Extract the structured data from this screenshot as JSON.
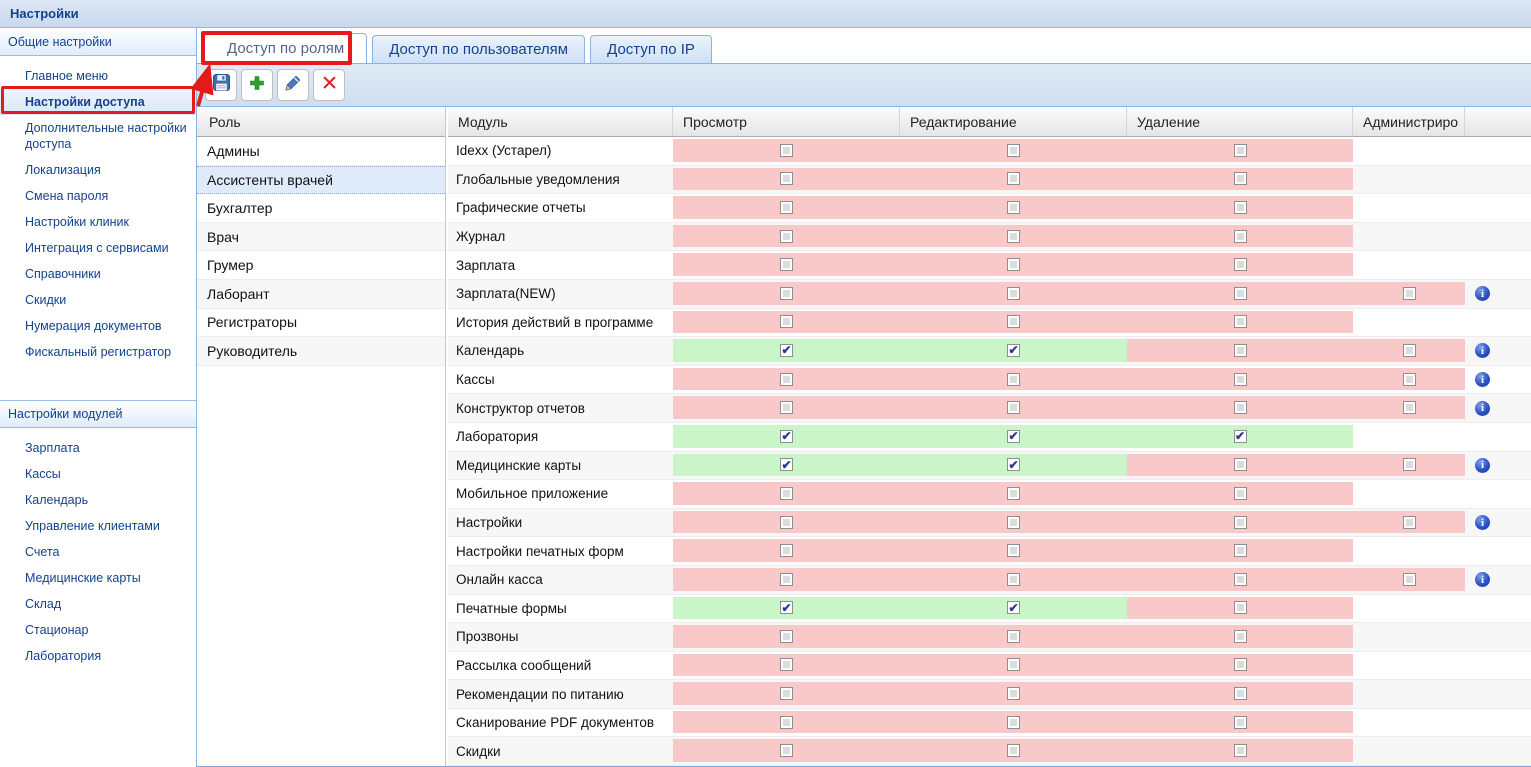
{
  "app": {
    "title": "Настройки"
  },
  "sidebar": {
    "sections": [
      {
        "header": "Общие настройки",
        "items": [
          {
            "label": "Главное меню",
            "selected": false
          },
          {
            "label": "Настройки доступа",
            "selected": true
          },
          {
            "label": "Дополнительные настройки доступа",
            "selected": false
          },
          {
            "label": "Локализация",
            "selected": false
          },
          {
            "label": "Смена пароля",
            "selected": false
          },
          {
            "label": "Настройки клиник",
            "selected": false
          },
          {
            "label": "Интеграция с сервисами",
            "selected": false
          },
          {
            "label": "Справочники",
            "selected": false
          },
          {
            "label": "Скидки",
            "selected": false
          },
          {
            "label": "Нумерация документов",
            "selected": false
          },
          {
            "label": "Фискальный регистратор",
            "selected": false
          }
        ]
      },
      {
        "header": "Настройки модулей",
        "items": [
          {
            "label": "Зарплата",
            "selected": false
          },
          {
            "label": "Кассы",
            "selected": false
          },
          {
            "label": "Календарь",
            "selected": false
          },
          {
            "label": "Управление клиентами",
            "selected": false
          },
          {
            "label": "Счета",
            "selected": false
          },
          {
            "label": "Медицинские карты",
            "selected": false
          },
          {
            "label": "Склад",
            "selected": false
          },
          {
            "label": "Стационар",
            "selected": false
          },
          {
            "label": "Лаборатория",
            "selected": false
          }
        ]
      }
    ]
  },
  "tabs": [
    {
      "name": "roles",
      "label": "Доступ по ролям",
      "active": true,
      "annotated": true
    },
    {
      "name": "users",
      "label": "Доступ по пользователям",
      "active": false,
      "annotated": false
    },
    {
      "name": "ip",
      "label": "Доступ по IP",
      "active": false,
      "annotated": false
    }
  ],
  "toolbar": {
    "buttons": [
      {
        "name": "save",
        "icon": "floppy-disk-icon"
      },
      {
        "name": "add",
        "icon": "plus-icon"
      },
      {
        "name": "edit",
        "icon": "pencil-icon"
      },
      {
        "name": "delete",
        "icon": "x-icon"
      }
    ]
  },
  "roles": {
    "header": "Роль",
    "selected": "Ассистенты врачей",
    "items": [
      "Админы",
      "Ассистенты врачей",
      "Бухгалтер",
      "Врач",
      "Грумер",
      "Лаборант",
      "Регистраторы",
      "Руководитель"
    ]
  },
  "permissions": {
    "columns": [
      "Модуль",
      "Просмотр",
      "Редактирование",
      "Удаление",
      "Администриро"
    ],
    "cell_legend": {
      "c": "checked (allowed, green)",
      "u": "unchecked (denied, pink)",
      "-": "not applicable"
    },
    "rows": [
      {
        "module": "Idexx (Устарел)",
        "cells": [
          "u",
          "u",
          "u",
          "-"
        ],
        "info": false
      },
      {
        "module": "Глобальные уведомления",
        "cells": [
          "u",
          "u",
          "u",
          "-"
        ],
        "info": false
      },
      {
        "module": "Графические отчеты",
        "cells": [
          "u",
          "u",
          "u",
          "-"
        ],
        "info": false
      },
      {
        "module": "Журнал",
        "cells": [
          "u",
          "u",
          "u",
          "-"
        ],
        "info": false
      },
      {
        "module": "Зарплата",
        "cells": [
          "u",
          "u",
          "u",
          "-"
        ],
        "info": false
      },
      {
        "module": "Зарплата(NEW)",
        "cells": [
          "u",
          "u",
          "u",
          "u"
        ],
        "info": true
      },
      {
        "module": "История действий в программе",
        "cells": [
          "u",
          "u",
          "u",
          "-"
        ],
        "info": false
      },
      {
        "module": "Календарь",
        "cells": [
          "c",
          "c",
          "u",
          "u"
        ],
        "info": true
      },
      {
        "module": "Кассы",
        "cells": [
          "u",
          "u",
          "u",
          "u"
        ],
        "info": true
      },
      {
        "module": "Конструктор отчетов",
        "cells": [
          "u",
          "u",
          "u",
          "u"
        ],
        "info": true
      },
      {
        "module": "Лаборатория",
        "cells": [
          "c",
          "c",
          "c",
          "-"
        ],
        "info": false
      },
      {
        "module": "Медицинские карты",
        "cells": [
          "c",
          "c",
          "u",
          "u"
        ],
        "info": true
      },
      {
        "module": "Мобильное приложение",
        "cells": [
          "u",
          "u",
          "u",
          "-"
        ],
        "info": false
      },
      {
        "module": "Настройки",
        "cells": [
          "u",
          "u",
          "u",
          "u"
        ],
        "info": true
      },
      {
        "module": "Настройки печатных форм",
        "cells": [
          "u",
          "u",
          "u",
          "-"
        ],
        "info": false
      },
      {
        "module": "Онлайн касса",
        "cells": [
          "u",
          "u",
          "u",
          "u"
        ],
        "info": true
      },
      {
        "module": "Печатные формы",
        "cells": [
          "c",
          "c",
          "u",
          "-"
        ],
        "info": false
      },
      {
        "module": "Прозвоны",
        "cells": [
          "u",
          "u",
          "u",
          "-"
        ],
        "info": false
      },
      {
        "module": "Рассылка сообщений",
        "cells": [
          "u",
          "u",
          "u",
          "-"
        ],
        "info": false
      },
      {
        "module": "Рекомендации по питанию",
        "cells": [
          "u",
          "u",
          "u",
          "-"
        ],
        "info": false
      },
      {
        "module": "Сканирование PDF документов",
        "cells": [
          "u",
          "u",
          "u",
          "-"
        ],
        "info": false
      },
      {
        "module": "Скидки",
        "cells": [
          "u",
          "u",
          "u",
          "-"
        ],
        "info": false
      }
    ]
  },
  "colors": {
    "denied_cell_pink": "#f9c8c8",
    "allowed_cell_green": "#c9f5c9",
    "annotation_red": "#e41b1b",
    "accent_blue": "#15428b",
    "selected_row_blue": "#dfeafa"
  }
}
